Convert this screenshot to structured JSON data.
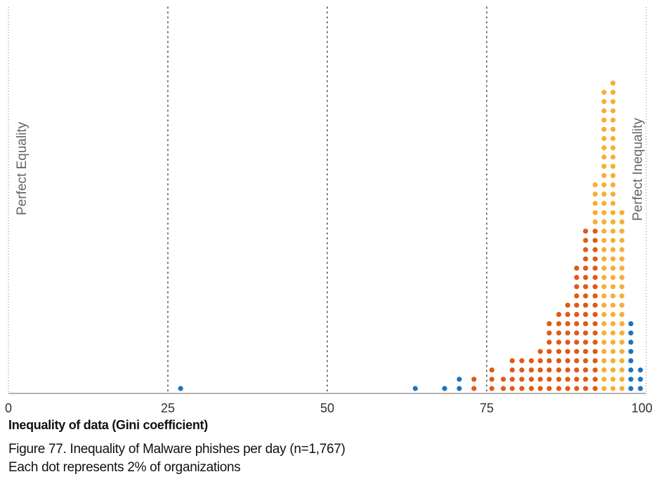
{
  "chart_data": {
    "type": "scatter",
    "subtype": "dot-histogram",
    "xlabel": "Inequality of data (Gini coefficient)",
    "xlim": [
      0,
      100
    ],
    "xticks": [
      0,
      25,
      50,
      75,
      100
    ],
    "reference_lines": [
      {
        "x": 25,
        "style": "dotted"
      },
      {
        "x": 50,
        "style": "dotted"
      },
      {
        "x": 75,
        "style": "dotted"
      }
    ],
    "annotations": {
      "left": "Perfect Equality",
      "right": "Perfect Inequality"
    },
    "dot_unit_percent": 2,
    "colors": {
      "blue": "#1a73c0",
      "orange_red": "#e05a14",
      "yellow_orange": "#f6ae35"
    },
    "columns": [
      {
        "x": 27.0,
        "blue": 1,
        "red": 0,
        "yellow": 0
      },
      {
        "x": 63.8,
        "blue": 1,
        "red": 0,
        "yellow": 0
      },
      {
        "x": 68.4,
        "blue": 1,
        "red": 0,
        "yellow": 0
      },
      {
        "x": 70.7,
        "blue": 2,
        "red": 0,
        "yellow": 0
      },
      {
        "x": 73.0,
        "blue": 0,
        "red": 2,
        "yellow": 0
      },
      {
        "x": 75.8,
        "blue": 0,
        "red": 3,
        "yellow": 0
      },
      {
        "x": 77.6,
        "blue": 0,
        "red": 2,
        "yellow": 0
      },
      {
        "x": 79.0,
        "blue": 0,
        "red": 4,
        "yellow": 0
      },
      {
        "x": 80.5,
        "blue": 0,
        "red": 4,
        "yellow": 0
      },
      {
        "x": 82.0,
        "blue": 0,
        "red": 4,
        "yellow": 0
      },
      {
        "x": 83.4,
        "blue": 0,
        "red": 5,
        "yellow": 0
      },
      {
        "x": 84.8,
        "blue": 0,
        "red": 8,
        "yellow": 0
      },
      {
        "x": 86.3,
        "blue": 0,
        "red": 9,
        "yellow": 0
      },
      {
        "x": 87.7,
        "blue": 0,
        "red": 10,
        "yellow": 0
      },
      {
        "x": 89.1,
        "blue": 0,
        "red": 14,
        "yellow": 0
      },
      {
        "x": 90.5,
        "blue": 0,
        "red": 18,
        "yellow": 0
      },
      {
        "x": 92.0,
        "blue": 0,
        "red": 18,
        "yellow": 5
      },
      {
        "x": 93.4,
        "blue": 0,
        "red": 0,
        "yellow": 33
      },
      {
        "x": 94.8,
        "blue": 0,
        "red": 0,
        "yellow": 34
      },
      {
        "x": 96.2,
        "blue": 0,
        "red": 0,
        "yellow": 20
      },
      {
        "x": 97.6,
        "blue": 8,
        "red": 0,
        "yellow": 0
      },
      {
        "x": 99.1,
        "blue": 3,
        "red": 0,
        "yellow": 0
      }
    ]
  },
  "caption": {
    "line1": "Figure 77. Inequality of Malware phishes per day (n=1,767)",
    "line2": "Each dot represents 2% of organizations"
  }
}
